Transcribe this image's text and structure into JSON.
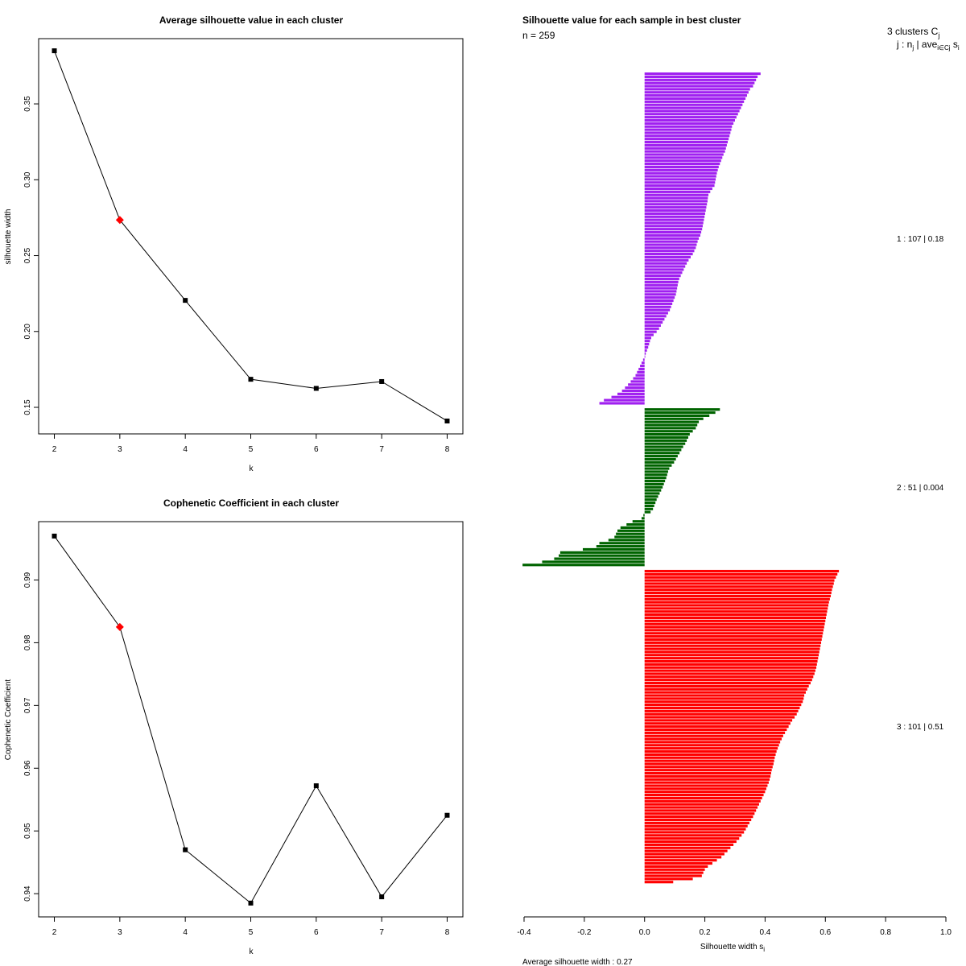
{
  "chart_data": [
    {
      "type": "line",
      "title": "Average silhouette value in each cluster",
      "xlabel": "k",
      "ylabel": "silhouette width",
      "x": [
        2,
        3,
        4,
        5,
        6,
        7,
        8
      ],
      "values": [
        0.385,
        0.2735,
        0.2205,
        0.1685,
        0.1625,
        0.167,
        0.141
      ],
      "highlight_x": 3,
      "xlim": [
        1.76,
        8.24
      ],
      "ylim": [
        0.1325,
        0.393
      ],
      "xticks": [
        "2",
        "3",
        "4",
        "5",
        "6",
        "7",
        "8"
      ],
      "yticks": [
        "0.15",
        "0.20",
        "0.25",
        "0.30",
        "0.35"
      ],
      "ytick_values": [
        0.15,
        0.2,
        0.25,
        0.3,
        0.35
      ],
      "line_color": "#000000",
      "highlight_color": "#ff0000"
    },
    {
      "type": "line",
      "title": "Cophenetic Coefficient in each cluster",
      "xlabel": "k",
      "ylabel": "Cophenetic Coefficient",
      "x": [
        2,
        3,
        4,
        5,
        6,
        7,
        8
      ],
      "values": [
        0.997,
        0.9825,
        0.947,
        0.9385,
        0.9572,
        0.9395,
        0.9525
      ],
      "highlight_x": 3,
      "xlim": [
        1.76,
        8.24
      ],
      "ylim": [
        0.9363,
        0.9993
      ],
      "xticks": [
        "2",
        "3",
        "4",
        "5",
        "6",
        "7",
        "8"
      ],
      "yticks": [
        "0.94",
        "0.95",
        "0.96",
        "0.97",
        "0.98",
        "0.99"
      ],
      "ytick_values": [
        0.94,
        0.95,
        0.96,
        0.97,
        0.98,
        0.99
      ],
      "line_color": "#000000",
      "highlight_color": "#ff0000"
    },
    {
      "type": "bar",
      "orientation": "horizontal",
      "title": "Silhouette value for each sample in best cluster",
      "n_label": "n = 259",
      "xlabel": "Silhouette width s",
      "xlabel_sub": "i",
      "xlim": [
        -0.4,
        1.0
      ],
      "xticks": [
        "-0.4",
        "-0.2",
        "0.0",
        "0.2",
        "0.4",
        "0.6",
        "0.8",
        "1.0"
      ],
      "xtick_values": [
        -0.4,
        -0.2,
        0.0,
        0.2,
        0.4,
        0.6,
        0.8,
        1.0
      ],
      "header_line1": "3  clusters  C",
      "header_line1_sub": "j",
      "header_line2": "j :  n",
      "header_line2_sub": "j",
      "header_line2_rest": " | ave",
      "header_line2_sub2": "i∈Cj",
      "header_line2_end": " s",
      "header_line2_sub3": "i",
      "footer": "Average silhouette width :  0.27",
      "clusters": [
        {
          "label": "1 :   107  |  0.18",
          "n": 107,
          "color": "#a020f0",
          "values": [
            0.385,
            0.375,
            0.37,
            0.365,
            0.36,
            0.35,
            0.345,
            0.34,
            0.335,
            0.33,
            0.325,
            0.32,
            0.315,
            0.31,
            0.305,
            0.3,
            0.295,
            0.29,
            0.288,
            0.285,
            0.282,
            0.279,
            0.276,
            0.273,
            0.27,
            0.267,
            0.262,
            0.258,
            0.254,
            0.25,
            0.246,
            0.243,
            0.24,
            0.238,
            0.236,
            0.234,
            0.232,
            0.225,
            0.218,
            0.212,
            0.21,
            0.209,
            0.207,
            0.205,
            0.203,
            0.201,
            0.199,
            0.197,
            0.195,
            0.193,
            0.191,
            0.188,
            0.185,
            0.18,
            0.176,
            0.173,
            0.17,
            0.165,
            0.16,
            0.153,
            0.146,
            0.14,
            0.135,
            0.13,
            0.125,
            0.12,
            0.115,
            0.112,
            0.11,
            0.108,
            0.106,
            0.104,
            0.1,
            0.096,
            0.092,
            0.088,
            0.084,
            0.078,
            0.072,
            0.066,
            0.06,
            0.054,
            0.048,
            0.04,
            0.03,
            0.022,
            0.018,
            0.015,
            0.012,
            0.008,
            0.004,
            0.001,
            -0.005,
            -0.01,
            -0.015,
            -0.02,
            -0.025,
            -0.03,
            -0.038,
            -0.046,
            -0.055,
            -0.065,
            -0.075,
            -0.09,
            -0.11,
            -0.135,
            -0.15
          ]
        },
        {
          "label": "2 :   51  |  0.004",
          "n": 51,
          "color": "#006400",
          "values": [
            0.25,
            0.235,
            0.215,
            0.195,
            0.18,
            0.175,
            0.17,
            0.16,
            0.15,
            0.145,
            0.14,
            0.135,
            0.128,
            0.122,
            0.116,
            0.11,
            0.104,
            0.098,
            0.09,
            0.082,
            0.078,
            0.075,
            0.072,
            0.068,
            0.064,
            0.06,
            0.055,
            0.05,
            0.045,
            0.04,
            0.036,
            0.032,
            0.028,
            0.02,
            -0.004,
            -0.01,
            -0.04,
            -0.06,
            -0.08,
            -0.09,
            -0.095,
            -0.1,
            -0.12,
            -0.15,
            -0.16,
            -0.205,
            -0.28,
            -0.285,
            -0.3,
            -0.34,
            -0.405
          ]
        },
        {
          "label": "3 :   101  |  0.51",
          "n": 101,
          "color": "#ff0000",
          "values": [
            0.645,
            0.64,
            0.635,
            0.63,
            0.628,
            0.625,
            0.622,
            0.62,
            0.618,
            0.615,
            0.612,
            0.61,
            0.608,
            0.606,
            0.604,
            0.602,
            0.6,
            0.598,
            0.596,
            0.594,
            0.592,
            0.59,
            0.588,
            0.586,
            0.584,
            0.582,
            0.58,
            0.578,
            0.576,
            0.574,
            0.572,
            0.57,
            0.567,
            0.564,
            0.56,
            0.556,
            0.551,
            0.545,
            0.54,
            0.535,
            0.53,
            0.528,
            0.525,
            0.52,
            0.515,
            0.51,
            0.505,
            0.498,
            0.49,
            0.484,
            0.478,
            0.472,
            0.466,
            0.46,
            0.455,
            0.45,
            0.446,
            0.442,
            0.438,
            0.435,
            0.432,
            0.43,
            0.428,
            0.425,
            0.422,
            0.42,
            0.418,
            0.415,
            0.412,
            0.408,
            0.404,
            0.4,
            0.395,
            0.39,
            0.385,
            0.38,
            0.375,
            0.37,
            0.365,
            0.36,
            0.354,
            0.348,
            0.342,
            0.336,
            0.33,
            0.322,
            0.314,
            0.305,
            0.295,
            0.285,
            0.275,
            0.265,
            0.255,
            0.24,
            0.225,
            0.21,
            0.2,
            0.195,
            0.19,
            0.16,
            0.095
          ]
        }
      ]
    }
  ]
}
